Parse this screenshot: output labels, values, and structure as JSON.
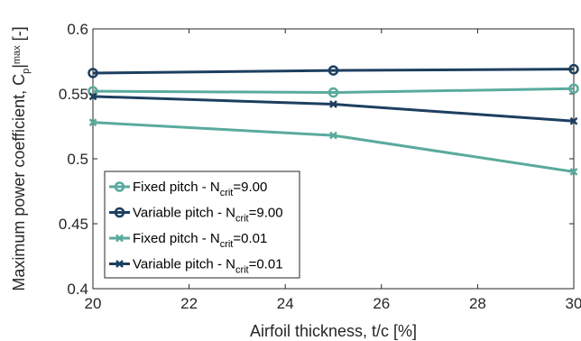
{
  "chart_data": {
    "type": "line",
    "xlabel": "Airfoil thickness, t/c [%]",
    "ylabel_parts": [
      "Maximum power coefficient, C",
      "p",
      "|",
      "max",
      " [-]"
    ],
    "xlim": [
      20,
      30
    ],
    "ylim": [
      0.4,
      0.6
    ],
    "xticks": [
      20,
      22,
      24,
      26,
      28,
      30
    ],
    "yticks": [
      0.4,
      0.45,
      0.5,
      0.55,
      0.6
    ],
    "ytick_labels": [
      "0.4",
      "0.45",
      "0.5",
      "0.55",
      "0.6"
    ],
    "grid": false,
    "legend_position": "lower-left",
    "x": [
      20,
      25,
      30
    ],
    "series": [
      {
        "name_parts": [
          "Fixed pitch - N",
          "crit",
          "=9.00"
        ],
        "values": [
          0.552,
          0.551,
          0.554
        ],
        "color": "#5aaa9d",
        "marker": "circle"
      },
      {
        "name_parts": [
          "Variable pitch - N",
          "crit",
          "=9.00"
        ],
        "values": [
          0.566,
          0.568,
          0.569
        ],
        "color": "#1d3f5f",
        "marker": "circle"
      },
      {
        "name_parts": [
          "Fixed pitch - N",
          "crit",
          "=0.01"
        ],
        "values": [
          0.528,
          0.518,
          0.49
        ],
        "color": "#5aaa9d",
        "marker": "x"
      },
      {
        "name_parts": [
          "Variable pitch - N",
          "crit",
          "=0.01"
        ],
        "values": [
          0.548,
          0.542,
          0.529
        ],
        "color": "#1d3f5f",
        "marker": "x"
      }
    ]
  }
}
